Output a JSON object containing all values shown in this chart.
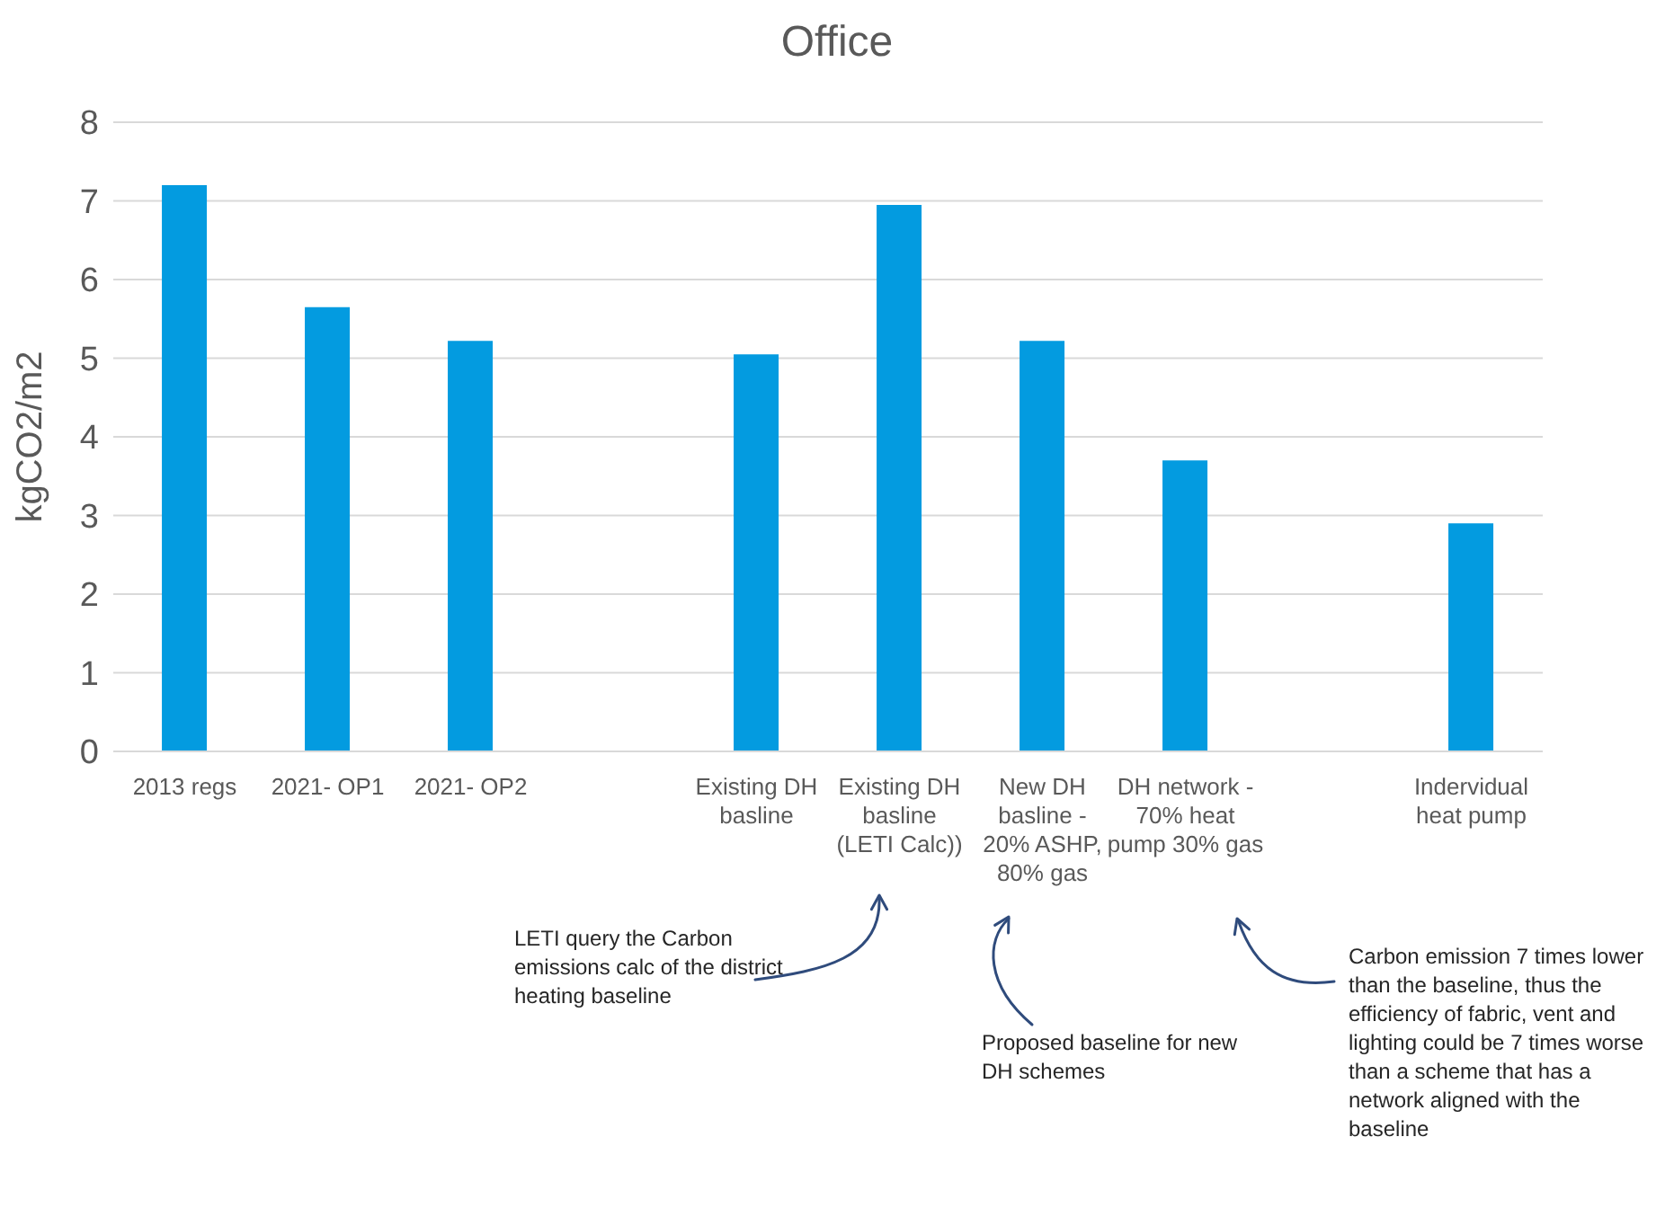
{
  "chart_data": {
    "type": "bar",
    "title": "Office",
    "ylabel": "kgCO2/m2",
    "categories": [
      "2013 regs",
      "2021- OP1",
      "2021- OP2",
      null,
      "Existing DH basline",
      "Existing DH basline (LETI Calc))",
      "New DH basline - 20% ASHP, 80% gas",
      "DH network - 70% heat pump 30% gas",
      null,
      "Indervidual heat pump"
    ],
    "values": [
      7.2,
      5.65,
      5.22,
      null,
      5.05,
      6.95,
      5.22,
      3.7,
      null,
      2.9
    ],
    "color": "#039be0",
    "ylim": [
      0,
      8
    ],
    "yticks": [
      0,
      1,
      2,
      3,
      4,
      5,
      6,
      7,
      8
    ],
    "grid": "y",
    "annotations": [
      "LETI query the Carbon emissions calc of the district heating baseline",
      "Proposed baseline for new DH schemes",
      "Carbon emission 7 times lower than the baseline, thus the efficiency of fabric, vent and lighting could be 7 times worse than a scheme that has a network aligned with the baseline"
    ]
  }
}
